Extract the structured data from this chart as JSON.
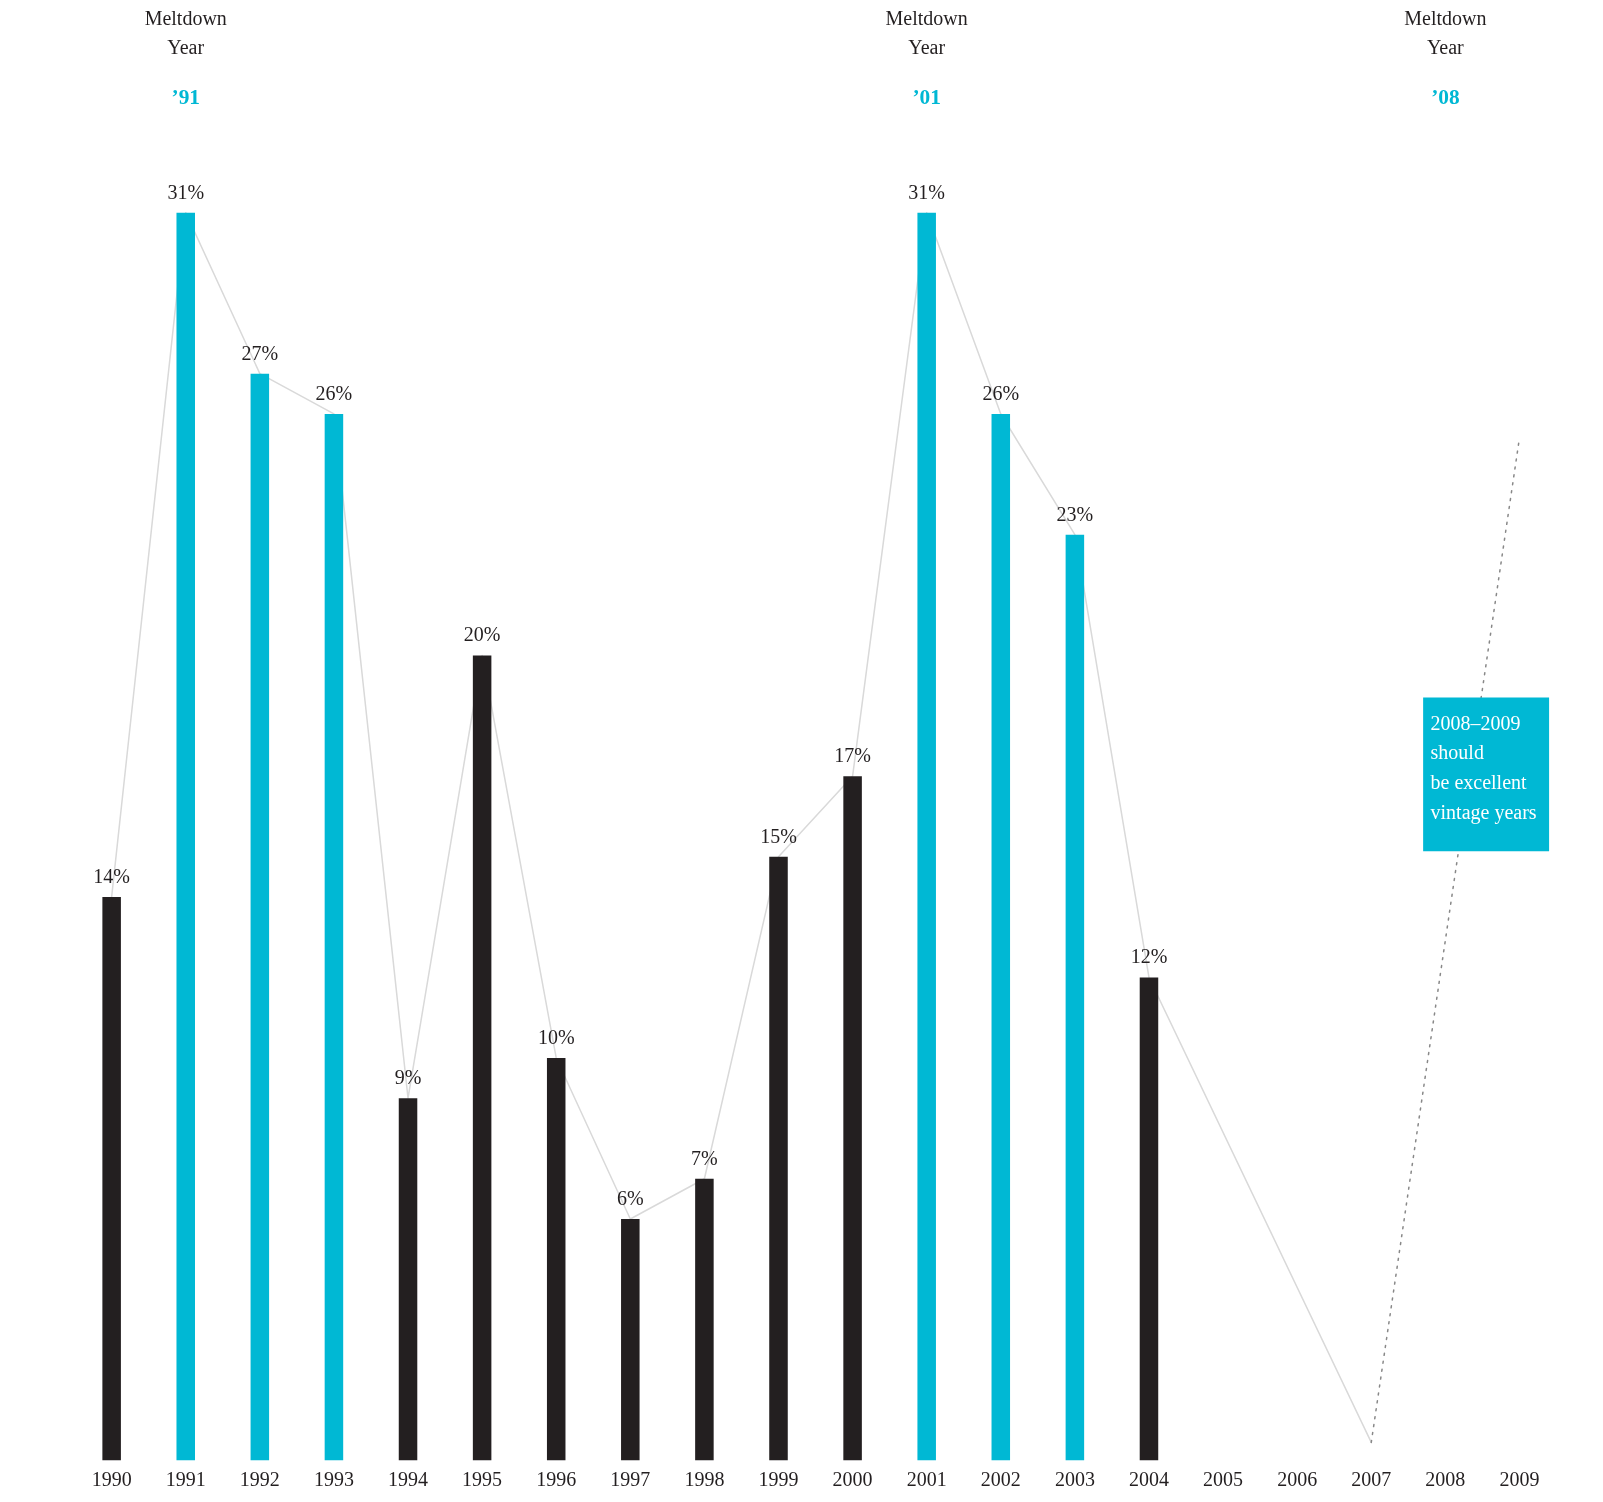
{
  "chart_data": {
    "type": "bar",
    "categories": [
      "1990",
      "1991",
      "1992",
      "1993",
      "1994",
      "1995",
      "1996",
      "1997",
      "1998",
      "1999",
      "2000",
      "2001",
      "2002",
      "2003",
      "2004",
      "2005",
      "2006",
      "2007",
      "2008",
      "2009"
    ],
    "values": [
      14,
      31,
      27,
      26,
      9,
      20,
      10,
      6,
      7,
      15,
      17,
      31,
      26,
      23,
      12,
      null,
      null,
      null,
      null,
      null
    ],
    "value_labels": [
      "14%",
      "31%",
      "27%",
      "26%",
      "9%",
      "20%",
      "10%",
      "6%",
      "7%",
      "15%",
      "17%",
      "31%",
      "26%",
      "23%",
      "12%",
      null,
      null,
      null,
      null,
      null
    ],
    "colors": [
      "#231f20",
      "#00b8d4",
      "#00b8d4",
      "#00b8d4",
      "#231f20",
      "#231f20",
      "#231f20",
      "#231f20",
      "#231f20",
      "#231f20",
      "#231f20",
      "#00b8d4",
      "#00b8d4",
      "#00b8d4",
      "#231f20",
      "#231f20",
      "#231f20",
      "#231f20",
      "#231f20",
      "#231f20"
    ],
    "series": [
      {
        "type": "line",
        "color": "#d9d9d9",
        "line_style": "solid",
        "values": [
          14,
          31,
          27,
          26,
          9,
          20,
          10,
          6,
          7,
          15,
          17,
          31,
          26,
          23,
          12,
          null,
          null,
          0.45,
          null,
          null
        ]
      },
      {
        "type": "line",
        "color": "#888888",
        "line_style": "dotted",
        "values": [
          null,
          null,
          null,
          null,
          null,
          null,
          null,
          null,
          null,
          null,
          null,
          null,
          null,
          null,
          null,
          null,
          null,
          0.45,
          null,
          25.4
        ]
      }
    ],
    "tick_labels": "x",
    "grid": false,
    "annotations": [
      "Meltdown\nYear",
      "’91",
      "Meltdown\nYear",
      "’01",
      "Meltdown\nYear",
      "’08",
      "2008–2009\nshould\nbe excellent\nvintage years"
    ]
  }
}
